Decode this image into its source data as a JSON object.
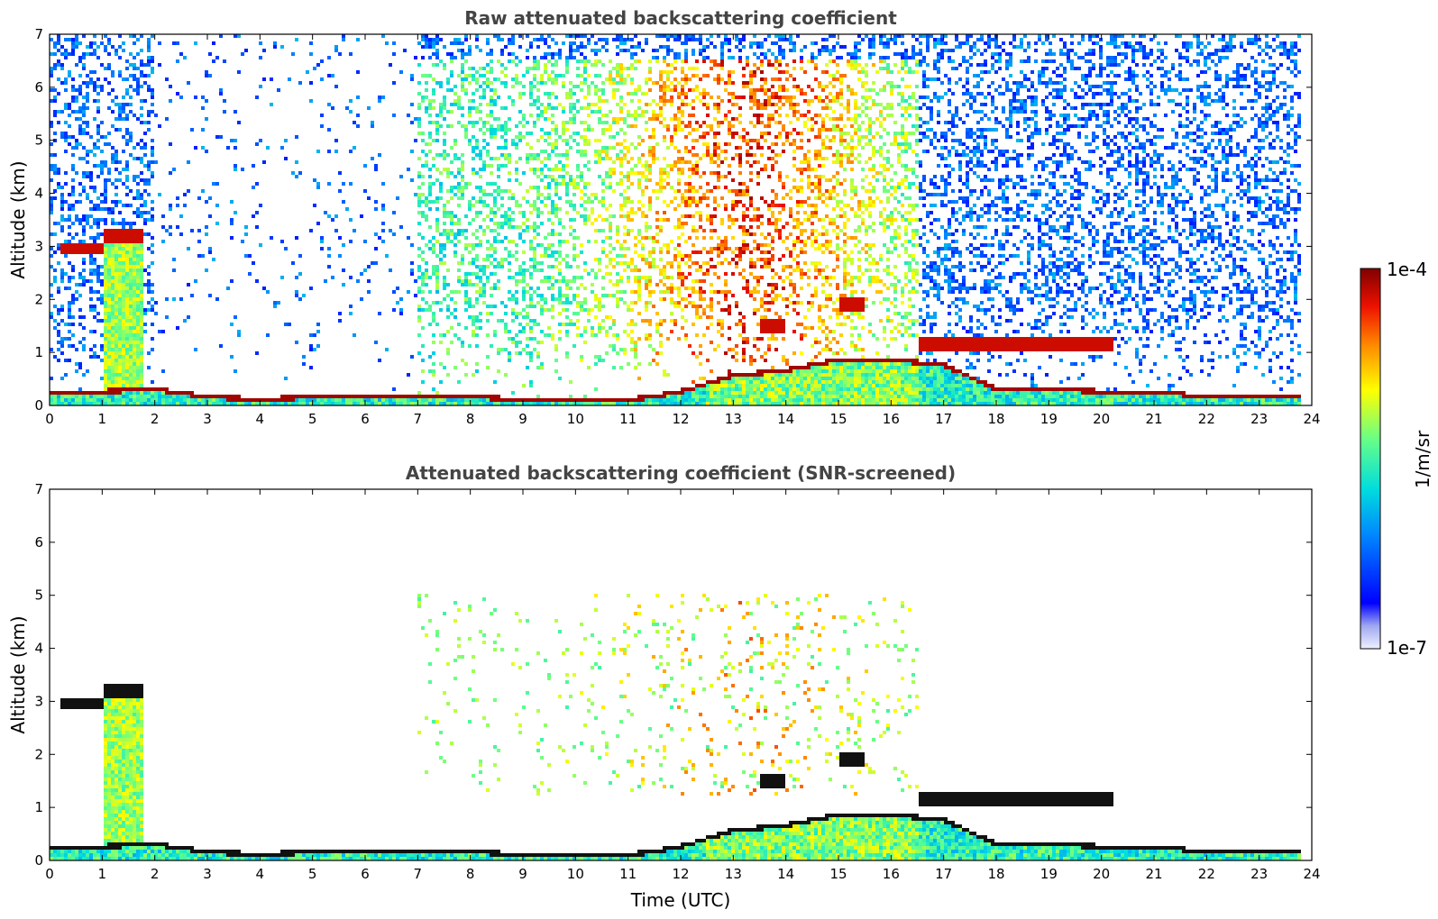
{
  "chart_data": [
    {
      "type": "heatmap",
      "title": "Raw attenuated backscattering coefficient",
      "xlabel": "",
      "ylabel": "Altitude (km)",
      "xlim": [
        0,
        24
      ],
      "ylim": [
        0,
        7
      ],
      "xticks": [
        "0",
        "1",
        "2",
        "3",
        "4",
        "5",
        "6",
        "7",
        "8",
        "9",
        "10",
        "11",
        "12",
        "13",
        "14",
        "15",
        "16",
        "17",
        "18",
        "19",
        "20",
        "21",
        "22",
        "23",
        "24"
      ],
      "yticks": [
        "0",
        "1",
        "2",
        "3",
        "4",
        "5",
        "6",
        "7"
      ],
      "grid": false,
      "features": {
        "boundary_layer_top_km": [
          [
            0,
            0.3
          ],
          [
            1,
            0.3
          ],
          [
            2,
            0.35
          ],
          [
            3,
            0.2
          ],
          [
            4,
            0.15
          ],
          [
            5,
            0.2
          ],
          [
            6,
            0.2
          ],
          [
            7,
            0.2
          ],
          [
            8,
            0.2
          ],
          [
            9,
            0.15
          ],
          [
            10,
            0.15
          ],
          [
            11,
            0.15
          ],
          [
            11.5,
            0.2
          ],
          [
            12,
            0.3
          ],
          [
            13,
            0.6
          ],
          [
            14,
            0.7
          ],
          [
            15,
            0.9
          ],
          [
            16,
            0.9
          ],
          [
            17,
            0.8
          ],
          [
            18,
            0.35
          ],
          [
            19,
            0.35
          ],
          [
            20,
            0.3
          ],
          [
            21,
            0.3
          ],
          [
            22,
            0.2
          ],
          [
            23,
            0.2
          ],
          [
            23.8,
            0.2
          ]
        ],
        "cloud_layers_km": [
          {
            "t0": 0.2,
            "t1": 1.0,
            "alt": 2.95
          },
          {
            "t0": 1.0,
            "t1": 1.8,
            "alt": 3.2
          },
          {
            "t0": 15.0,
            "t1": 15.5,
            "alt": 1.9
          },
          {
            "t0": 13.5,
            "t1": 14.0,
            "alt": 1.5
          },
          {
            "t0": 16.5,
            "t1": 20.2,
            "alt": 1.15
          }
        ]
      }
    },
    {
      "type": "heatmap",
      "title": "Attenuated backscattering coefficient (SNR-screened)",
      "xlabel": "Time (UTC)",
      "ylabel": "Altitude (km)",
      "xlim": [
        0,
        24
      ],
      "ylim": [
        0,
        7
      ],
      "xticks": [
        "0",
        "1",
        "2",
        "3",
        "4",
        "5",
        "6",
        "7",
        "8",
        "9",
        "10",
        "11",
        "12",
        "13",
        "14",
        "15",
        "16",
        "17",
        "18",
        "19",
        "20",
        "21",
        "22",
        "23",
        "24"
      ],
      "yticks": [
        "0",
        "1",
        "2",
        "3",
        "4",
        "5",
        "6",
        "7"
      ],
      "grid": false
    }
  ],
  "colorbar": {
    "label": "1/m/sr",
    "min_label": "1e-7",
    "max_label": "1e-4",
    "scale": "log",
    "range": [
      1e-07,
      0.0001
    ],
    "colormap": "jet"
  }
}
